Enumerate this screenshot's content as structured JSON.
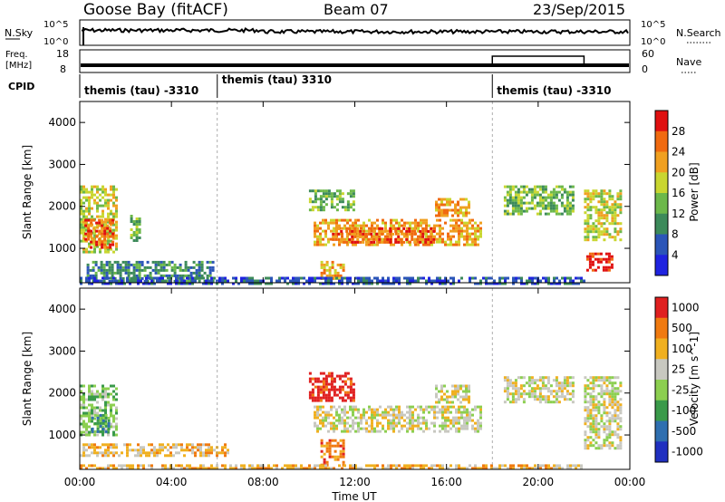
{
  "header": {
    "title": "Goose Bay (fitACF)",
    "beam": "Beam 07",
    "date": "23/Sep/2015"
  },
  "summary_panels": {
    "nsky_label": "N.Sky",
    "nsky_ticks": [
      "10^5",
      "10^0"
    ],
    "nsearch_label": "N.Search",
    "nsearch_ticks": [
      "10^5",
      "10^0"
    ],
    "freq_label": "Freq.",
    "freq_unit": "[MHz]",
    "freq_ticks": [
      "18",
      "8"
    ],
    "nave_label": "Nave",
    "nave_ticks": [
      "60",
      "0"
    ],
    "cpid_label": "CPID",
    "cpid_segments": [
      {
        "start_hour": 0,
        "label": "themis (tau) -3310"
      },
      {
        "start_hour": 6,
        "label": "themis (tau) 3310"
      },
      {
        "start_hour": 18,
        "label": "themis (tau) -3310"
      }
    ]
  },
  "chart_data": [
    {
      "type": "heatmap",
      "name": "power",
      "ylabel": "Slant Range [km]",
      "ylim": [
        180,
        4500
      ],
      "yticks": [
        "1000",
        "2000",
        "3000",
        "4000"
      ],
      "ytick_values": [
        1000,
        2000,
        3000,
        4000
      ],
      "xlim_hours": [
        0,
        24
      ],
      "colorbar_label": "Power [dB]",
      "colorbar_ticks": [
        "4",
        "8",
        "12",
        "16",
        "20",
        "24",
        "28"
      ],
      "colorbar_colors": [
        "#1f23e0",
        "#2b55b8",
        "#3c8a5a",
        "#6cb84a",
        "#c9d630",
        "#f0a020",
        "#f06a10",
        "#e01010"
      ],
      "echo_regions": [
        {
          "t0": 0.0,
          "t1": 1.6,
          "r0": 900,
          "r1": 2500,
          "level": 4
        },
        {
          "t0": 0.2,
          "t1": 1.4,
          "r0": 1000,
          "r1": 1700,
          "level": 6
        },
        {
          "t0": 2.2,
          "t1": 2.6,
          "r0": 1200,
          "r1": 1800,
          "level": 3
        },
        {
          "t0": 0.3,
          "t1": 5.8,
          "r0": 200,
          "r1": 700,
          "level": 2
        },
        {
          "t0": 10.5,
          "t1": 11.5,
          "r0": 300,
          "r1": 700,
          "level": 5
        },
        {
          "t0": 10.2,
          "t1": 17.5,
          "r0": 1100,
          "r1": 1700,
          "level": 5
        },
        {
          "t0": 11.0,
          "t1": 15.5,
          "r0": 1150,
          "r1": 1500,
          "level": 6
        },
        {
          "t0": 10.0,
          "t1": 12.0,
          "r0": 1900,
          "r1": 2400,
          "level": 3
        },
        {
          "t0": 15.5,
          "t1": 17.0,
          "r0": 1800,
          "r1": 2200,
          "level": 5
        },
        {
          "t0": 18.5,
          "t1": 21.5,
          "r0": 1800,
          "r1": 2500,
          "level": 3
        },
        {
          "t0": 22.0,
          "t1": 23.6,
          "r0": 1200,
          "r1": 2400,
          "level": 4
        },
        {
          "t0": 22.1,
          "t1": 23.2,
          "r0": 500,
          "r1": 900,
          "level": 7
        },
        {
          "t0": 0.0,
          "t1": 22.0,
          "r0": 180,
          "r1": 320,
          "level": 1
        }
      ]
    },
    {
      "type": "heatmap",
      "name": "velocity",
      "ylabel": "Slant Range [km]",
      "ylim": [
        180,
        4500
      ],
      "yticks": [
        "1000",
        "2000",
        "3000",
        "4000"
      ],
      "ytick_values": [
        1000,
        2000,
        3000,
        4000
      ],
      "xlabel": "Time UT",
      "xticks": [
        "00:00",
        "04:00",
        "08:00",
        "12:00",
        "16:00",
        "20:00",
        "00:00"
      ],
      "xtick_hours": [
        0,
        4,
        8,
        12,
        16,
        20,
        24
      ],
      "colorbar_label": "Velocity [m s^-1]",
      "colorbar_ticks": [
        "1000",
        "500",
        "100",
        "25",
        "-25",
        "-100",
        "-500",
        "-1000"
      ],
      "colorbar_colors": [
        "#2030c0",
        "#2f6fb0",
        "#3a9a4a",
        "#8ccf50",
        "#c8c8c0",
        "#f0b020",
        "#f07a10",
        "#e02020"
      ],
      "echo_regions": [
        {
          "t0": 0.0,
          "t1": 1.6,
          "r0": 1000,
          "r1": 2200,
          "level": 3
        },
        {
          "t0": 0.5,
          "t1": 1.3,
          "r0": 1100,
          "r1": 1500,
          "level": 2
        },
        {
          "t0": 0.0,
          "t1": 6.5,
          "r0": 500,
          "r1": 800,
          "level": 5
        },
        {
          "t0": 10.2,
          "t1": 17.5,
          "r0": 1100,
          "r1": 1700,
          "level": 4
        },
        {
          "t0": 10.0,
          "t1": 12.0,
          "r0": 1800,
          "r1": 2500,
          "level": 7
        },
        {
          "t0": 10.5,
          "t1": 11.5,
          "r0": 300,
          "r1": 900,
          "level": 6
        },
        {
          "t0": 15.5,
          "t1": 17.0,
          "r0": 1800,
          "r1": 2200,
          "level": 4
        },
        {
          "t0": 18.5,
          "t1": 21.5,
          "r0": 1800,
          "r1": 2400,
          "level": 4
        },
        {
          "t0": 22.0,
          "t1": 23.6,
          "r0": 700,
          "r1": 2400,
          "level": 4
        },
        {
          "t0": 0.0,
          "t1": 22.0,
          "r0": 180,
          "r1": 300,
          "level": 5
        }
      ]
    }
  ]
}
